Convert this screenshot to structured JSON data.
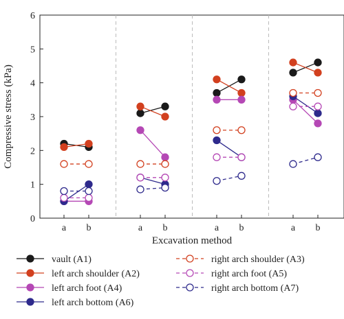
{
  "chart_data": {
    "type": "line",
    "title": "",
    "xlabel": "Excavation method",
    "ylabel": "Compressive stress (kPa)",
    "ylim": [
      0,
      6
    ],
    "yticks": [
      0,
      1,
      2,
      3,
      4,
      5,
      6
    ],
    "grid": false,
    "legend_position": "bottom",
    "groups": [
      {
        "categories": [
          "a",
          "b"
        ]
      },
      {
        "categories": [
          "a",
          "b"
        ]
      },
      {
        "categories": [
          "a",
          "b"
        ]
      },
      {
        "categories": [
          "a",
          "b"
        ]
      }
    ],
    "series": [
      {
        "name": "vault (A1)",
        "color": "#1a1a1a",
        "filled": true,
        "dashed": false,
        "values": [
          [
            2.2,
            2.1
          ],
          [
            3.1,
            3.3
          ],
          [
            3.7,
            4.1
          ],
          [
            4.3,
            4.6
          ]
        ]
      },
      {
        "name": "left arch shoulder (A2)",
        "color": "#d2401f",
        "filled": true,
        "dashed": false,
        "values": [
          [
            2.1,
            2.2
          ],
          [
            3.3,
            3.0
          ],
          [
            4.1,
            3.7
          ],
          [
            4.6,
            4.3
          ]
        ]
      },
      {
        "name": "left arch foot (A4)",
        "color": "#b548b5",
        "filled": true,
        "dashed": false,
        "values": [
          [
            0.5,
            0.5
          ],
          [
            2.6,
            1.8
          ],
          [
            3.5,
            3.5
          ],
          [
            3.5,
            2.8
          ]
        ]
      },
      {
        "name": "left arch bottom (A6)",
        "color": "#2e2a8c",
        "filled": true,
        "dashed": false,
        "values": [
          [
            0.5,
            1.0
          ],
          [
            1.2,
            1.0
          ],
          [
            2.3,
            1.8
          ],
          [
            3.6,
            3.1
          ]
        ]
      },
      {
        "name": "right arch shoulder (A3)",
        "color": "#d2401f",
        "filled": false,
        "dashed": true,
        "values": [
          [
            1.6,
            1.6
          ],
          [
            1.6,
            1.6
          ],
          [
            2.6,
            2.6
          ],
          [
            3.7,
            3.7
          ]
        ]
      },
      {
        "name": "right arch foot (A5)",
        "color": "#b548b5",
        "filled": false,
        "dashed": true,
        "values": [
          [
            0.6,
            0.6
          ],
          [
            1.2,
            1.2
          ],
          [
            1.8,
            1.8
          ],
          [
            3.3,
            3.3
          ]
        ]
      },
      {
        "name": "right arch bottom (A7)",
        "color": "#2e2a8c",
        "filled": false,
        "dashed": true,
        "values": [
          [
            0.8,
            0.8
          ],
          [
            0.85,
            0.9
          ],
          [
            1.1,
            1.25
          ],
          [
            1.6,
            1.8
          ]
        ]
      }
    ]
  }
}
